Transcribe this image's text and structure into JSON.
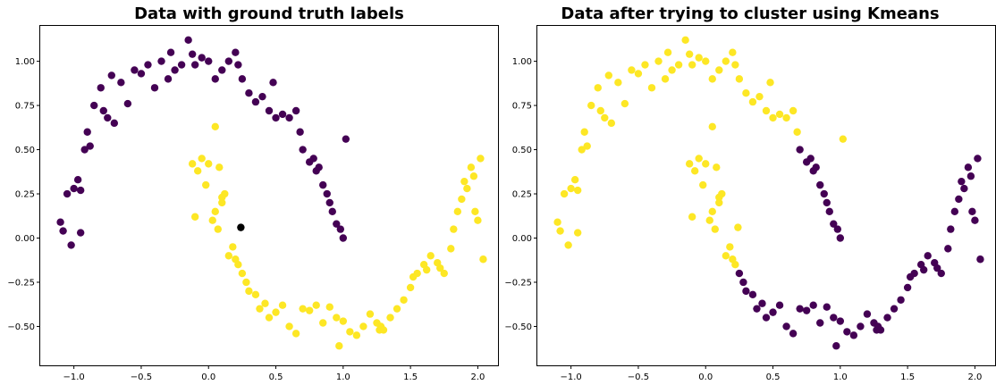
{
  "chart_data": [
    {
      "type": "scatter",
      "title": "Data with ground truth labels",
      "xlim": [
        -1.25,
        2.15
      ],
      "ylim": [
        -0.72,
        1.2
      ],
      "xticks": [
        -1.0,
        -0.5,
        0.0,
        0.5,
        1.0,
        1.5,
        2.0
      ],
      "yticks": [
        1.0,
        0.75,
        0.5,
        0.25,
        0.0,
        -0.25,
        -0.5
      ],
      "xtick_labels": [
        "−1.0",
        "−0.5",
        "0.0",
        "0.5",
        "1.0",
        "1.5",
        "2.0"
      ],
      "ytick_labels": [
        "1.00",
        "0.75",
        "0.50",
        "0.25",
        "0.00",
        "−0.25",
        "−0.50"
      ],
      "colors": {
        "0": "#440154",
        "1": "#fde725"
      },
      "x": [
        -1.1,
        -1.05,
        -1.0,
        -0.97,
        -0.95,
        -0.92,
        -0.9,
        -0.88,
        -0.85,
        -0.8,
        -0.78,
        -0.75,
        -0.72,
        -0.7,
        -0.65,
        -0.6,
        -0.55,
        -0.5,
        -0.45,
        -0.4,
        -0.35,
        -0.3,
        -0.28,
        -0.25,
        -0.2,
        -0.15,
        -0.12,
        -0.1,
        -0.05,
        0.0,
        0.05,
        0.1,
        0.15,
        0.2,
        0.22,
        0.25,
        0.3,
        0.35,
        0.4,
        0.45,
        0.48,
        0.5,
        0.55,
        0.6,
        0.65,
        0.68,
        0.7,
        0.75,
        0.78,
        0.8,
        0.82,
        0.85,
        0.88,
        0.9,
        0.92,
        0.95,
        0.98,
        1.0,
        1.02,
        -1.08,
        -0.95,
        -1.02,
        -0.12,
        -0.1,
        -0.08,
        -0.05,
        -0.02,
        0.0,
        0.03,
        0.05,
        0.07,
        0.08,
        0.1,
        0.12,
        0.15,
        0.18,
        0.2,
        0.22,
        0.25,
        0.28,
        0.3,
        0.35,
        0.38,
        0.42,
        0.45,
        0.5,
        0.55,
        0.6,
        0.65,
        0.7,
        0.75,
        0.8,
        0.85,
        0.9,
        0.95,
        0.97,
        1.0,
        1.05,
        1.1,
        1.15,
        1.2,
        1.25,
        1.27,
        1.28,
        1.3,
        1.35,
        1.4,
        1.45,
        1.5,
        1.52,
        1.55,
        1.6,
        1.62,
        1.65,
        1.7,
        1.72,
        1.75,
        1.8,
        1.82,
        1.85,
        1.88,
        1.9,
        1.92,
        1.95,
        1.97,
        2.0,
        2.02,
        2.04,
        1.98,
        0.05,
        0.1,
        0.24
      ],
      "y": [
        0.09,
        0.25,
        0.28,
        0.33,
        0.27,
        0.5,
        0.6,
        0.52,
        0.75,
        0.85,
        0.72,
        0.68,
        0.92,
        0.65,
        0.88,
        0.76,
        0.95,
        0.93,
        0.98,
        0.85,
        1.0,
        0.9,
        1.05,
        0.95,
        0.98,
        1.12,
        1.04,
        0.98,
        1.02,
        1.0,
        0.9,
        0.95,
        1.0,
        1.05,
        0.98,
        0.9,
        0.82,
        0.77,
        0.8,
        0.72,
        0.88,
        0.68,
        0.7,
        0.68,
        0.72,
        0.6,
        0.5,
        0.43,
        0.45,
        0.38,
        0.4,
        0.3,
        0.25,
        0.2,
        0.15,
        0.08,
        0.05,
        0.0,
        0.56,
        0.04,
        0.03,
        -0.04,
        0.42,
        0.12,
        0.38,
        0.45,
        0.3,
        0.42,
        0.1,
        0.15,
        0.05,
        0.4,
        0.2,
        0.25,
        -0.1,
        -0.05,
        -0.12,
        -0.15,
        -0.2,
        -0.25,
        -0.3,
        -0.32,
        -0.4,
        -0.37,
        -0.45,
        -0.42,
        -0.38,
        -0.5,
        -0.54,
        -0.4,
        -0.41,
        -0.38,
        -0.48,
        -0.39,
        -0.45,
        -0.61,
        -0.47,
        -0.53,
        -0.55,
        -0.5,
        -0.43,
        -0.48,
        -0.52,
        -0.5,
        -0.52,
        -0.45,
        -0.4,
        -0.35,
        -0.28,
        -0.22,
        -0.2,
        -0.15,
        -0.18,
        -0.1,
        -0.14,
        -0.17,
        -0.2,
        -0.06,
        0.05,
        0.15,
        0.22,
        0.32,
        0.28,
        0.4,
        0.35,
        0.1,
        0.45,
        -0.12,
        0.15,
        0.63,
        0.23,
        0.06
      ],
      "labels": [
        0,
        0,
        0,
        0,
        0,
        0,
        0,
        0,
        0,
        0,
        0,
        0,
        0,
        0,
        0,
        0,
        0,
        0,
        0,
        0,
        0,
        0,
        0,
        0,
        0,
        0,
        0,
        0,
        0,
        0,
        0,
        0,
        0,
        0,
        0,
        0,
        0,
        0,
        0,
        0,
        0,
        0,
        0,
        0,
        0,
        0,
        0,
        0,
        0,
        0,
        0,
        0,
        0,
        0,
        0,
        0,
        0,
        0,
        0,
        0,
        0,
        0,
        1,
        1,
        1,
        1,
        1,
        1,
        1,
        1,
        1,
        1,
        1,
        1,
        1,
        1,
        1,
        1,
        1,
        1,
        1,
        1,
        1,
        1,
        1,
        1,
        1,
        1,
        1,
        1,
        1,
        1,
        1,
        1,
        1,
        1,
        1,
        1,
        1,
        1,
        1,
        1,
        1,
        1,
        1,
        1,
        1,
        1,
        1,
        1,
        1,
        1,
        1,
        1,
        1,
        1,
        1,
        1,
        1,
        1,
        1,
        1,
        1,
        1,
        1,
        1,
        1,
        1,
        1,
        1,
        1
      ]
    },
    {
      "type": "scatter",
      "title": "Data after trying to cluster using Kmeans",
      "xlim": [
        -1.25,
        2.15
      ],
      "ylim": [
        -0.72,
        1.2
      ],
      "xticks": [
        -1.0,
        -0.5,
        0.0,
        0.5,
        1.0,
        1.5,
        2.0
      ],
      "yticks": [
        1.0,
        0.75,
        0.5,
        0.25,
        0.0,
        -0.25,
        -0.5
      ],
      "xtick_labels": [
        "−1.0",
        "−0.5",
        "0.0",
        "0.5",
        "1.0",
        "1.5",
        "2.0"
      ],
      "ytick_labels": [
        "1.00",
        "0.75",
        "0.50",
        "0.25",
        "0.00",
        "−0.25",
        "−0.50"
      ],
      "colors": {
        "0": "#440154",
        "1": "#fde725"
      },
      "x": [
        -1.1,
        -1.05,
        -1.0,
        -0.97,
        -0.95,
        -0.92,
        -0.9,
        -0.88,
        -0.85,
        -0.8,
        -0.78,
        -0.75,
        -0.72,
        -0.7,
        -0.65,
        -0.6,
        -0.55,
        -0.5,
        -0.45,
        -0.4,
        -0.35,
        -0.3,
        -0.28,
        -0.25,
        -0.2,
        -0.15,
        -0.12,
        -0.1,
        -0.05,
        0.0,
        0.05,
        0.1,
        0.15,
        0.2,
        0.22,
        0.25,
        0.3,
        0.35,
        0.4,
        0.45,
        0.48,
        0.5,
        0.55,
        0.6,
        0.65,
        0.68,
        0.7,
        0.75,
        0.78,
        0.8,
        0.82,
        0.85,
        0.88,
        0.9,
        0.92,
        0.95,
        0.98,
        1.0,
        1.02,
        -1.08,
        -0.95,
        -1.02,
        -0.12,
        -0.1,
        -0.08,
        -0.05,
        -0.02,
        0.0,
        0.03,
        0.05,
        0.07,
        0.08,
        0.1,
        0.12,
        0.15,
        0.18,
        0.2,
        0.22,
        0.25,
        0.28,
        0.3,
        0.35,
        0.38,
        0.42,
        0.45,
        0.5,
        0.55,
        0.6,
        0.65,
        0.7,
        0.75,
        0.8,
        0.85,
        0.9,
        0.95,
        0.97,
        1.0,
        1.05,
        1.1,
        1.15,
        1.2,
        1.25,
        1.27,
        1.28,
        1.3,
        1.35,
        1.4,
        1.45,
        1.5,
        1.52,
        1.55,
        1.6,
        1.62,
        1.65,
        1.7,
        1.72,
        1.75,
        1.8,
        1.82,
        1.85,
        1.88,
        1.9,
        1.92,
        1.95,
        1.97,
        2.0,
        2.02,
        2.04,
        1.98,
        0.05,
        0.1,
        0.24
      ],
      "y": [
        0.09,
        0.25,
        0.28,
        0.33,
        0.27,
        0.5,
        0.6,
        0.52,
        0.75,
        0.85,
        0.72,
        0.68,
        0.92,
        0.65,
        0.88,
        0.76,
        0.95,
        0.93,
        0.98,
        0.85,
        1.0,
        0.9,
        1.05,
        0.95,
        0.98,
        1.12,
        1.04,
        0.98,
        1.02,
        1.0,
        0.9,
        0.95,
        1.0,
        1.05,
        0.98,
        0.9,
        0.82,
        0.77,
        0.8,
        0.72,
        0.88,
        0.68,
        0.7,
        0.68,
        0.72,
        0.6,
        0.5,
        0.43,
        0.45,
        0.38,
        0.4,
        0.3,
        0.25,
        0.2,
        0.15,
        0.08,
        0.05,
        0.0,
        0.56,
        0.04,
        0.03,
        -0.04,
        0.42,
        0.12,
        0.38,
        0.45,
        0.3,
        0.42,
        0.1,
        0.15,
        0.05,
        0.4,
        0.2,
        0.25,
        -0.1,
        -0.05,
        -0.12,
        -0.15,
        -0.2,
        -0.25,
        -0.3,
        -0.32,
        -0.4,
        -0.37,
        -0.45,
        -0.42,
        -0.38,
        -0.5,
        -0.54,
        -0.4,
        -0.41,
        -0.38,
        -0.48,
        -0.39,
        -0.45,
        -0.61,
        -0.47,
        -0.53,
        -0.55,
        -0.5,
        -0.43,
        -0.48,
        -0.52,
        -0.5,
        -0.52,
        -0.45,
        -0.4,
        -0.35,
        -0.28,
        -0.22,
        -0.2,
        -0.15,
        -0.18,
        -0.1,
        -0.14,
        -0.17,
        -0.2,
        -0.06,
        0.05,
        0.15,
        0.22,
        0.32,
        0.28,
        0.4,
        0.35,
        0.1,
        0.45,
        -0.12,
        0.15,
        0.63,
        0.23,
        0.06
      ],
      "labels": [
        1,
        1,
        1,
        1,
        1,
        1,
        1,
        1,
        1,
        1,
        1,
        1,
        1,
        1,
        1,
        1,
        1,
        1,
        1,
        1,
        1,
        1,
        1,
        1,
        1,
        1,
        1,
        1,
        1,
        1,
        1,
        1,
        1,
        1,
        1,
        1,
        1,
        1,
        1,
        1,
        1,
        1,
        1,
        1,
        1,
        1,
        0,
        0,
        0,
        0,
        0,
        0,
        0,
        0,
        0,
        0,
        0,
        0,
        1,
        1,
        1,
        1,
        1,
        1,
        1,
        1,
        1,
        1,
        1,
        1,
        1,
        1,
        1,
        1,
        1,
        1,
        1,
        1,
        0,
        0,
        0,
        0,
        0,
        0,
        0,
        0,
        0,
        0,
        0,
        0,
        0,
        0,
        0,
        0,
        0,
        0,
        0,
        0,
        0,
        0,
        0,
        0,
        0,
        0,
        0,
        0,
        0,
        0,
        0,
        0,
        0,
        0,
        0,
        0,
        0,
        0,
        0,
        0,
        0,
        0,
        0,
        0,
        0,
        0,
        0,
        0,
        0,
        0,
        0,
        1,
        1,
        1
      ]
    }
  ]
}
